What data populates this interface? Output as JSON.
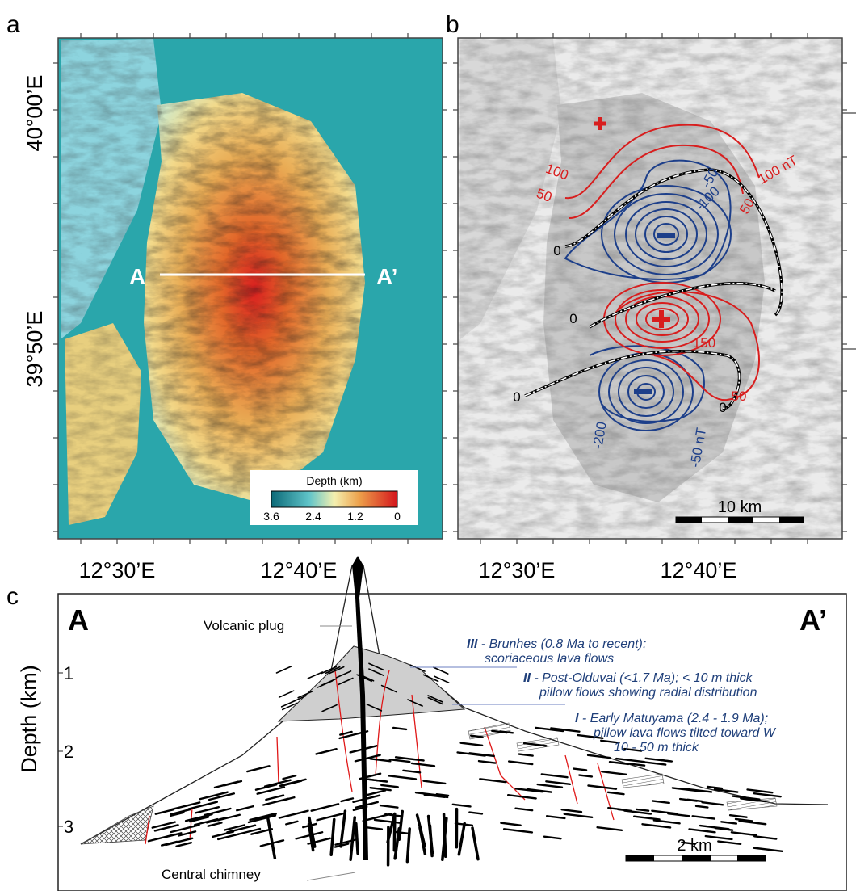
{
  "panels": {
    "a": {
      "label": "a",
      "lat_labels": [
        "40°00’E",
        "39°50’E"
      ],
      "lon_labels": [
        "12°30’E",
        "12°40’E"
      ],
      "profile_start": "A",
      "profile_end": "A’",
      "colorbar": {
        "title": "Depth (km)",
        "ticks": [
          "3.6",
          "2.4",
          "1.2",
          "0"
        ]
      }
    },
    "b": {
      "label": "b",
      "lon_labels": [
        "12°30’E",
        "12°40’E"
      ],
      "contour_labels": [
        "100 nT",
        "50",
        "100",
        "50",
        "-50",
        "-100",
        "0",
        "0",
        "0",
        "0",
        "150",
        "50",
        "-200",
        "-50 nT"
      ],
      "scale_bar": "10 km"
    },
    "c": {
      "label": "c",
      "end_left": "A",
      "end_right": "A’",
      "axis_label": "Depth (km)",
      "depth_ticks": [
        "1",
        "2",
        "3"
      ],
      "plug": "Volcanic plug",
      "chimney": "Central chimney",
      "scale_bar": "2 km",
      "units": [
        {
          "unit": "III",
          "line1": " - Brunhes (0.8 Ma to recent);",
          "line2": "scoriaceous lava flows"
        },
        {
          "unit": "II",
          "line1": " - Post-Olduvai (<1.7 Ma); < 10 m thick",
          "line2": "pillow flows showing radial distribution"
        },
        {
          "unit": "I",
          "line1": " - Early Matuyama (2.4 - 1.9 Ma);",
          "line2": "pillow lava flows tilted toward W",
          "line3": "10 - 50 m thick"
        }
      ]
    }
  }
}
